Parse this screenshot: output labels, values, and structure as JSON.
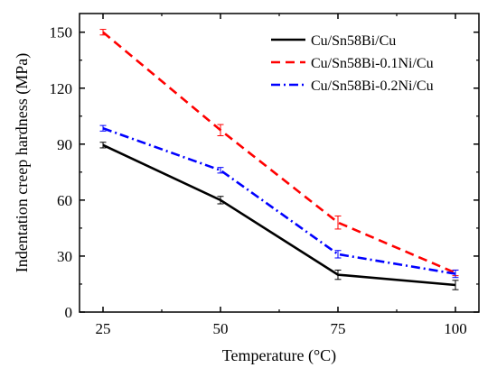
{
  "chart_data": {
    "type": "line",
    "title": "",
    "xlabel": "Temperature (°C)",
    "ylabel": "Indentation creep hardness (MPa)",
    "x": [
      25,
      50,
      75,
      100
    ],
    "x_ticks": [
      "25",
      "50",
      "75",
      "100"
    ],
    "xlim": [
      20,
      105
    ],
    "ylim": [
      0,
      160
    ],
    "y_ticks": [
      "0",
      "30",
      "60",
      "90",
      "120",
      "150"
    ],
    "grid": false,
    "legend_position": "top-right",
    "series": [
      {
        "name": "Cu/Sn58Bi/Cu",
        "color": "#000000",
        "line_style": "solid",
        "values": [
          89.5,
          60,
          20,
          14.5
        ],
        "errors": [
          1.5,
          2,
          2.5,
          2.5
        ]
      },
      {
        "name": "Cu/Sn58Bi-0.1Ni/Cu",
        "color": "#ff0000",
        "line_style": "dashed",
        "values": [
          150,
          97.5,
          48,
          21
        ],
        "errors": [
          1.5,
          3,
          3.5,
          1.5
        ]
      },
      {
        "name": "Cu/Sn58Bi-0.2Ni/Cu",
        "color": "#0000ff",
        "line_style": "dash-dot",
        "values": [
          98.5,
          76,
          31,
          20.5
        ],
        "errors": [
          1.5,
          1.5,
          2,
          2
        ]
      }
    ]
  }
}
